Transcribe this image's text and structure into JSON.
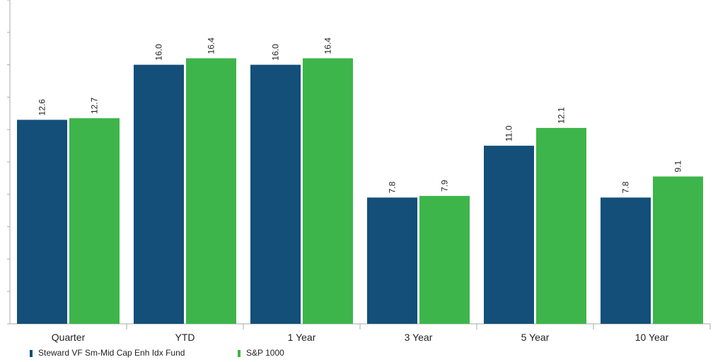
{
  "chart_data": {
    "type": "bar",
    "title": "",
    "xlabel": "",
    "ylabel": "",
    "categories": [
      "Quarter",
      "YTD",
      "1 Year",
      "3 Year",
      "5 Year",
      "10 Year"
    ],
    "series": [
      {
        "name": "Steward VF Sm-Mid Cap Enh Idx Fund",
        "color": "#134f79",
        "values": [
          12.6,
          16.0,
          16.0,
          7.8,
          11.0,
          7.8
        ],
        "labels": [
          "12.6",
          "16.0",
          "16.0",
          "7.8",
          "11.0",
          "7.8"
        ]
      },
      {
        "name": "S&P 1000",
        "color": "#3db54a",
        "values": [
          12.7,
          16.4,
          16.4,
          7.9,
          12.1,
          9.1
        ],
        "labels": [
          "12.7",
          "16.4",
          "16.4",
          "7.9",
          "12.1",
          "9.1"
        ]
      }
    ],
    "ylim": [
      0,
      20
    ],
    "y_tick_count": 10,
    "gridlines": false,
    "legend_position": "bottom-left"
  }
}
